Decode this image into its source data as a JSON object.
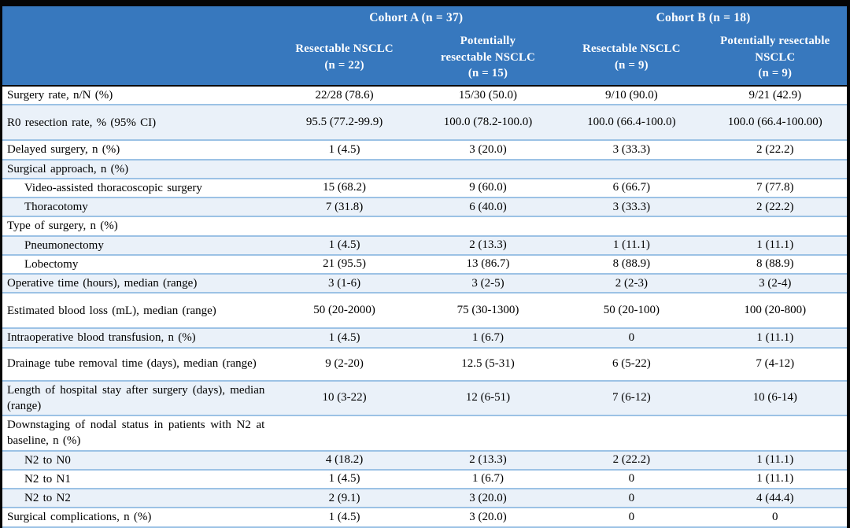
{
  "colors": {
    "header_bg": "#3778BE",
    "header_text": "#FFFFFF",
    "band_bg": "#EAF1F9",
    "row_separator": "#9CC2E5",
    "frame": "#000000",
    "body_text": "#000000"
  },
  "table": {
    "cohorts": [
      "Cohort A (n = 37)",
      "Cohort B (n = 18)"
    ],
    "columns": [
      "Resectable NSCLC\n(n = 22)",
      "Potentially\nresectable NSCLC\n(n = 15)",
      "Resectable NSCLC\n(n = 9)",
      "Potentially resectable\nNSCLC\n(n = 9)"
    ],
    "rows": [
      {
        "label": "Surgery rate, n/N (%)",
        "values": [
          "22/28 (78.6)",
          "15/30 (50.0)",
          "9/10 (90.0)",
          "9/21 (42.9)"
        ],
        "indent": false,
        "shaded": false,
        "size": "normal"
      },
      {
        "label": "R0 resection rate, % (95% CI)",
        "values": [
          "95.5 (77.2-99.9)",
          "100.0 (78.2-100.0)",
          "100.0 (66.4-100.0)",
          "100.0 (66.4-100.00)"
        ],
        "indent": false,
        "shaded": true,
        "size": "tall"
      },
      {
        "label": "Delayed surgery, n (%)",
        "values": [
          "1 (4.5)",
          "3 (20.0)",
          "3 (33.3)",
          "2 (22.2)"
        ],
        "indent": false,
        "shaded": false,
        "size": "normal"
      },
      {
        "label": "Surgical approach, n (%)",
        "values": [
          "",
          "",
          "",
          ""
        ],
        "indent": false,
        "shaded": true,
        "size": "normal"
      },
      {
        "label": "Video-assisted thoracoscopic surgery",
        "values": [
          "15 (68.2)",
          "9 (60.0)",
          "6 (66.7)",
          "7 (77.8)"
        ],
        "indent": true,
        "shaded": false,
        "size": "normal"
      },
      {
        "label": "Thoracotomy",
        "values": [
          "7 (31.8)",
          "6 (40.0)",
          "3 (33.3)",
          "2 (22.2)"
        ],
        "indent": true,
        "shaded": true,
        "size": "normal"
      },
      {
        "label": "Type of surgery, n (%)",
        "values": [
          "",
          "",
          "",
          ""
        ],
        "indent": false,
        "shaded": false,
        "size": "normal"
      },
      {
        "label": "Pneumonectomy",
        "values": [
          "1 (4.5)",
          "2 (13.3)",
          "1 (11.1)",
          "1 (11.1)"
        ],
        "indent": true,
        "shaded": true,
        "size": "normal"
      },
      {
        "label": "Lobectomy",
        "values": [
          "21 (95.5)",
          "13 (86.7)",
          "8 (88.9)",
          "8 (88.9)"
        ],
        "indent": true,
        "shaded": false,
        "size": "normal"
      },
      {
        "label": "Operative time (hours), median (range)",
        "values": [
          "3 (1-6)",
          "3 (2-5)",
          "2 (2-3)",
          "3 (2-4)"
        ],
        "indent": false,
        "shaded": true,
        "size": "normal"
      },
      {
        "label": "Estimated blood loss (mL), median (range)",
        "values": [
          "50 (20-2000)",
          "75 (30-1300)",
          "50 (20-100)",
          "100 (20-800)"
        ],
        "indent": false,
        "shaded": false,
        "size": "tall"
      },
      {
        "label": "Intraoperative blood transfusion, n (%)",
        "values": [
          "1 (4.5)",
          "1 (6.7)",
          "0",
          "1 (11.1)"
        ],
        "indent": false,
        "shaded": true,
        "size": "normal"
      },
      {
        "label": "Drainage tube removal time (days), median (range)",
        "values": [
          "9 (2-20)",
          "12.5 (5-31)",
          "6 (5-22)",
          "7 (4-12)"
        ],
        "indent": false,
        "shaded": false,
        "size": "wrap"
      },
      {
        "label": "Length of hospital stay after surgery (days), median (range)",
        "values": [
          "10 (3-22)",
          "12 (6-51)",
          "7 (6-12)",
          "10 (6-14)"
        ],
        "indent": false,
        "shaded": true,
        "size": "wrap"
      },
      {
        "label": "Downstaging of nodal status in patients with N2 at baseline, n (%)",
        "values": [
          "",
          "",
          "",
          ""
        ],
        "indent": false,
        "shaded": false,
        "size": "wrap"
      },
      {
        "label": "N2 to N0",
        "values": [
          "4 (18.2)",
          "2 (13.3)",
          "2 (22.2)",
          "1 (11.1)"
        ],
        "indent": true,
        "shaded": true,
        "size": "normal"
      },
      {
        "label": "N2 to N1",
        "values": [
          "1 (4.5)",
          "1 (6.7)",
          "0",
          "1 (11.1)"
        ],
        "indent": true,
        "shaded": false,
        "size": "normal"
      },
      {
        "label": "N2 to N2",
        "values": [
          "2 (9.1)",
          "3 (20.0)",
          "0",
          "4 (44.4)"
        ],
        "indent": true,
        "shaded": true,
        "size": "normal"
      },
      {
        "label": "Surgical complications, n (%)",
        "values": [
          "1 (4.5)",
          "3 (20.0)",
          "0",
          "0"
        ],
        "indent": false,
        "shaded": false,
        "size": "normal"
      }
    ]
  }
}
